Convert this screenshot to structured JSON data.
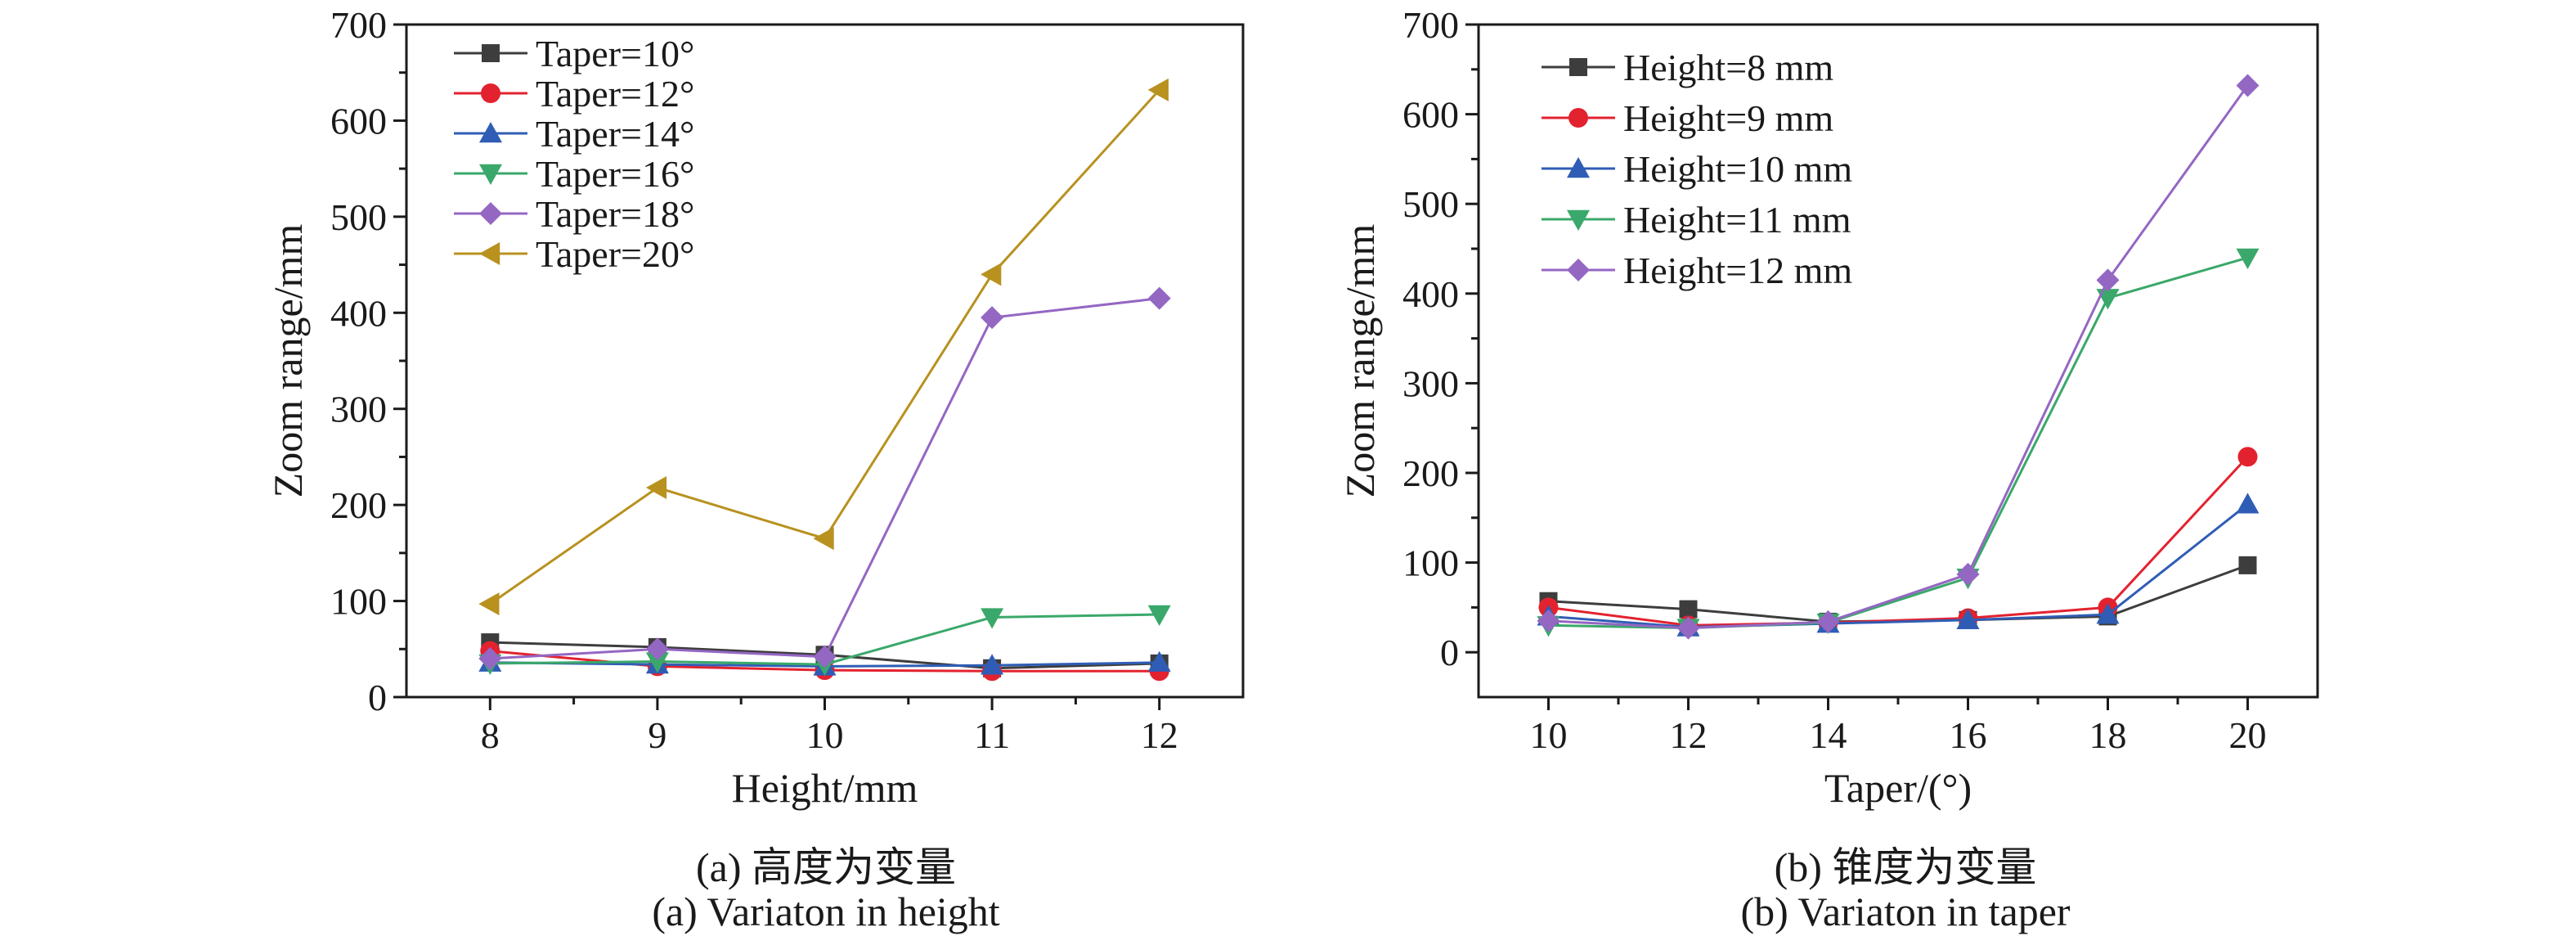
{
  "chart_data": [
    {
      "panel": "a",
      "type": "line",
      "xlabel": "Height/mm",
      "ylabel": "Zoom range/mm",
      "xlim": [
        7.5,
        12.5
      ],
      "ylim": [
        0,
        700
      ],
      "xticks": [
        8,
        9,
        10,
        11,
        12
      ],
      "yticks": [
        0,
        100,
        200,
        300,
        400,
        500,
        600,
        700
      ],
      "legend_position": "top-left",
      "x": [
        8,
        9,
        10,
        11,
        12
      ],
      "series": [
        {
          "name": "Taper=10°",
          "color": "#3d3d3d",
          "marker": "square",
          "values": [
            57,
            52,
            44,
            30,
            35
          ]
        },
        {
          "name": "Taper=12°",
          "color": "#e3222f",
          "marker": "circle",
          "values": [
            48,
            32,
            28,
            27,
            27
          ]
        },
        {
          "name": "Taper=14°",
          "color": "#2f5db5",
          "marker": "triangle-up",
          "values": [
            36,
            34,
            32,
            33,
            36
          ]
        },
        {
          "name": "Taper=16°",
          "color": "#3aa86a",
          "marker": "triangle-down",
          "values": [
            35,
            37,
            34,
            83,
            86
          ]
        },
        {
          "name": "Taper=18°",
          "color": "#9467c3",
          "marker": "diamond",
          "values": [
            40,
            50,
            42,
            395,
            415
          ]
        },
        {
          "name": "Taper=20°",
          "color": "#b8911f",
          "marker": "triangle-left",
          "values": [
            97,
            218,
            165,
            440,
            632
          ]
        }
      ],
      "caption_cn": "(a) 高度为变量",
      "caption_en": "(a) Variaton in height"
    },
    {
      "panel": "b",
      "type": "line",
      "xlabel": "Taper/(°)",
      "ylabel": "Zoom range/mm",
      "xlim": [
        9,
        21
      ],
      "ylim": [
        -50,
        700
      ],
      "xticks": [
        10,
        12,
        14,
        16,
        18,
        20
      ],
      "yticks": [
        0,
        100,
        200,
        300,
        400,
        500,
        600,
        700
      ],
      "legend_position": "top-left",
      "x": [
        10,
        12,
        14,
        16,
        18,
        20
      ],
      "series": [
        {
          "name": "Height=8 mm",
          "color": "#3d3d3d",
          "marker": "square",
          "values": [
            57,
            48,
            34,
            36,
            40,
            97
          ]
        },
        {
          "name": "Height=9 mm",
          "color": "#e3222f",
          "marker": "circle",
          "values": [
            50,
            30,
            33,
            38,
            50,
            218
          ]
        },
        {
          "name": "Height=10 mm",
          "color": "#2f5db5",
          "marker": "triangle-up",
          "values": [
            40,
            28,
            32,
            36,
            42,
            165
          ]
        },
        {
          "name": "Height=11 mm",
          "color": "#3aa86a",
          "marker": "triangle-down",
          "values": [
            30,
            27,
            33,
            83,
            395,
            440
          ]
        },
        {
          "name": "Height=12 mm",
          "color": "#9467c3",
          "marker": "diamond",
          "values": [
            35,
            27,
            34,
            87,
            415,
            632
          ]
        }
      ],
      "caption_cn": "(b) 锥度为变量",
      "caption_en": "(b) Variaton in taper"
    }
  ]
}
